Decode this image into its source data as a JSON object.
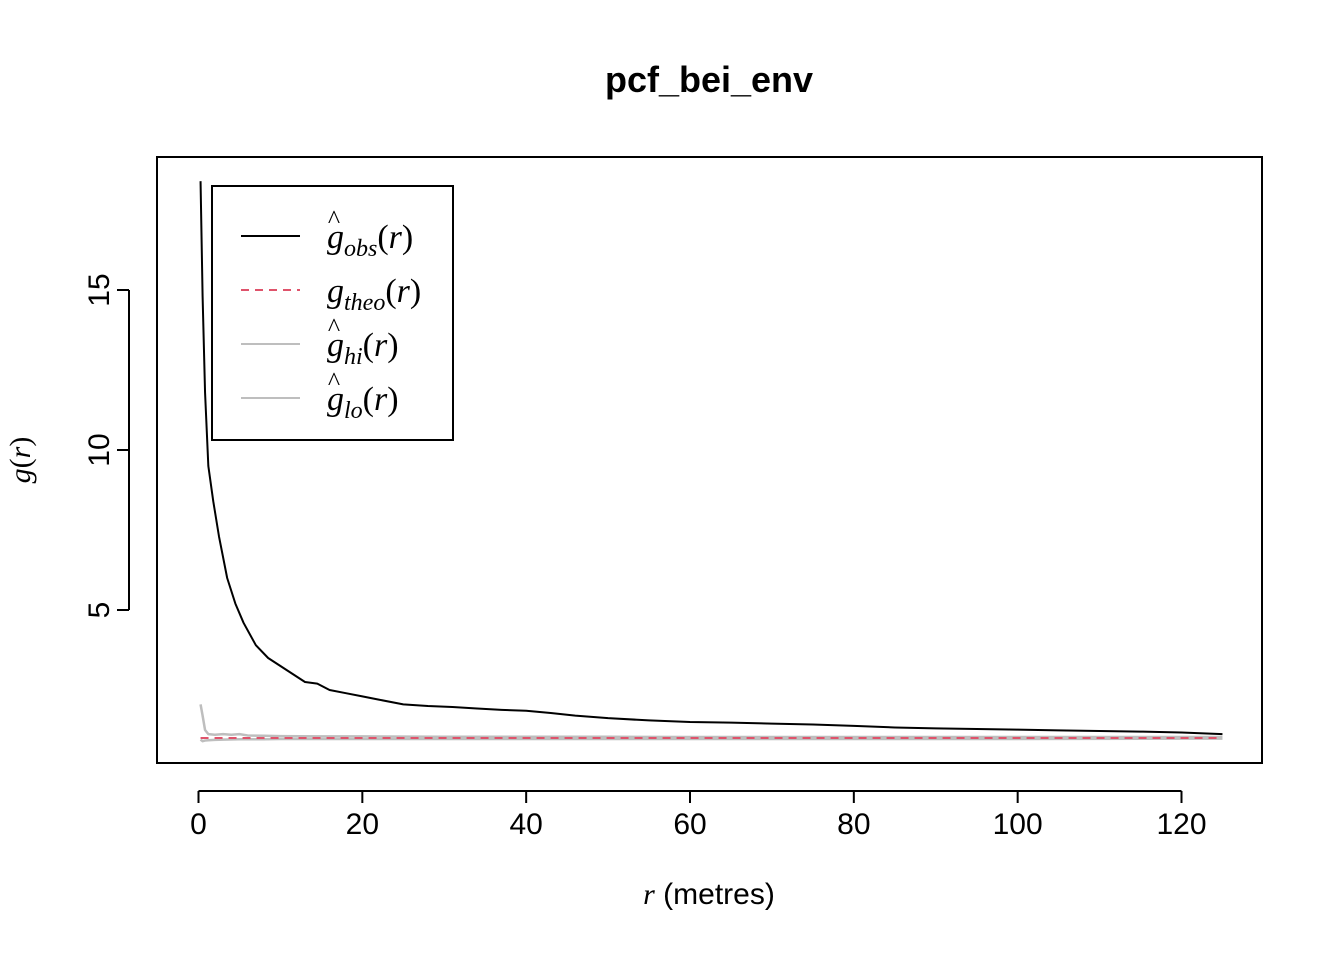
{
  "chart_data": {
    "type": "line",
    "title": "pcf_bei_env",
    "xlabel_var": "r",
    "xlabel_unit": " (metres)",
    "ylabel_fn": "g",
    "ylabel_arg": "r",
    "xlim": [
      0,
      125
    ],
    "ylim": [
      0.6,
      18.5
    ],
    "xticks": [
      0,
      20,
      40,
      60,
      80,
      100,
      120
    ],
    "yticks": [
      5,
      10,
      15
    ],
    "legend_position": "top-left",
    "grid": false,
    "series": [
      {
        "key": "obs",
        "name": "g_obs(r)",
        "hat": true,
        "subscript": "obs",
        "color": "#000000",
        "dash": "solid",
        "x": [
          0.25,
          0.5,
          0.8,
          1.2,
          1.8,
          2.5,
          3.5,
          4.5,
          5.5,
          7,
          8.5,
          10,
          11.5,
          13,
          14.5,
          16,
          18,
          20,
          22,
          25,
          28,
          31,
          34,
          37,
          40,
          43,
          46,
          50,
          55,
          60,
          65,
          70,
          75,
          80,
          85,
          90,
          95,
          100,
          105,
          110,
          115,
          120,
          125
        ],
        "y": [
          18.4,
          14.8,
          11.8,
          9.5,
          8.4,
          7.3,
          6.0,
          5.2,
          4.6,
          3.9,
          3.5,
          3.25,
          3.0,
          2.75,
          2.7,
          2.5,
          2.4,
          2.3,
          2.2,
          2.05,
          2.0,
          1.97,
          1.92,
          1.88,
          1.85,
          1.78,
          1.7,
          1.62,
          1.55,
          1.5,
          1.48,
          1.45,
          1.42,
          1.38,
          1.33,
          1.3,
          1.28,
          1.26,
          1.24,
          1.22,
          1.2,
          1.17,
          1.12
        ]
      },
      {
        "key": "theo",
        "name": "g_theo(r)",
        "hat": false,
        "subscript": "theo",
        "color": "#DF536B",
        "dash": "dashed",
        "x": [
          0.25,
          125
        ],
        "y": [
          1.0,
          1.0
        ]
      },
      {
        "key": "hi",
        "name": "g_hi(r)",
        "hat": true,
        "subscript": "hi",
        "color": "#BEBEBE",
        "dash": "solid",
        "x": [
          0.25,
          0.5,
          0.8,
          1.2,
          2,
          3,
          4,
          5,
          6,
          8,
          10,
          15,
          20,
          30,
          40,
          50,
          60,
          70,
          80,
          90,
          100,
          110,
          120,
          125
        ],
        "y": [
          2.05,
          1.7,
          1.25,
          1.12,
          1.1,
          1.12,
          1.1,
          1.12,
          1.08,
          1.07,
          1.06,
          1.05,
          1.05,
          1.04,
          1.04,
          1.04,
          1.03,
          1.03,
          1.03,
          1.03,
          1.03,
          1.03,
          1.03,
          1.03
        ]
      },
      {
        "key": "lo",
        "name": "g_lo(r)",
        "hat": true,
        "subscript": "lo",
        "color": "#BEBEBE",
        "dash": "solid",
        "x": [
          0.25,
          0.5,
          0.8,
          1.2,
          2,
          3,
          5,
          8,
          10,
          20,
          40,
          60,
          80,
          100,
          120,
          125
        ],
        "y": [
          0.95,
          0.9,
          0.92,
          0.93,
          0.94,
          0.95,
          0.96,
          0.96,
          0.97,
          0.97,
          0.97,
          0.97,
          0.97,
          0.97,
          0.98,
          0.98
        ]
      }
    ]
  }
}
